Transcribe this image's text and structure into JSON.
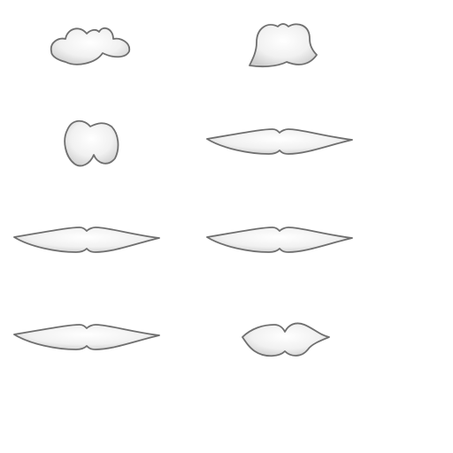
{
  "sheet": {
    "background": "#ffffff",
    "fill_highlight": "#ffffff",
    "fill_shadow": "#cfcfcf",
    "outline": "#6f6f6f",
    "grid": {
      "columns": 2,
      "rows": 4
    }
  },
  "sprites": [
    {
      "name": "mustache-handlebar-bushy",
      "shape": "bushy",
      "row": 1,
      "column": 1
    },
    {
      "name": "mustache-walrus",
      "shape": "walrus",
      "row": 1,
      "column": 2
    },
    {
      "name": "mustache-twin-puff",
      "shape": "puff",
      "row": 2,
      "column": 1
    },
    {
      "name": "mustache-long-thin",
      "shape": "long",
      "row": 2,
      "column": 2
    },
    {
      "name": "mustache-long-thin",
      "shape": "long",
      "row": 3,
      "column": 1
    },
    {
      "name": "mustache-long-thin",
      "shape": "long",
      "row": 3,
      "column": 2
    },
    {
      "name": "mustache-long-thin",
      "shape": "long",
      "row": 4,
      "column": 1
    },
    {
      "name": "mustache-chevron",
      "shape": "chevron",
      "row": 4,
      "column": 2
    }
  ]
}
